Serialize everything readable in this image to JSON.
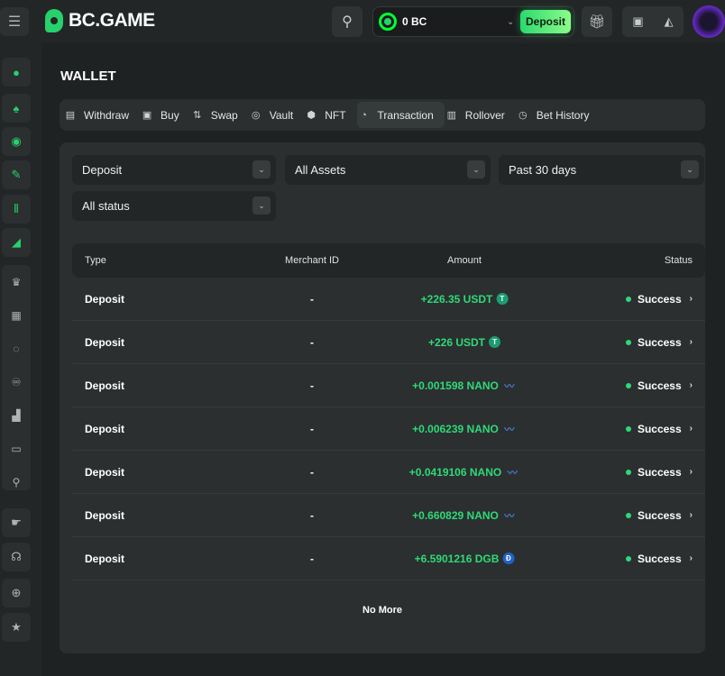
{
  "header": {
    "logo": "BC.GAME",
    "balance": "0 BC",
    "deposit_label": "Deposit",
    "accent": "#27d16b"
  },
  "sidebar": {
    "top_items": [
      "bc-logo-icon",
      "casino-icon",
      "sports-icon",
      "lottery-icon",
      "trading-icon",
      "cards-icon"
    ],
    "group_items": [
      "vip-crown-icon",
      "gift-icon",
      "spin-icon",
      "affiliate-icon",
      "forum-icon",
      "chat-icon",
      "search-user-icon"
    ],
    "bottom_items": [
      "sponsorship-icon",
      "support-icon",
      "language-icon",
      "favorite-icon"
    ]
  },
  "page": {
    "title": "WALLET"
  },
  "tabs": [
    {
      "label": "Withdraw",
      "icon": "withdraw-icon"
    },
    {
      "label": "Buy",
      "icon": "buy-icon"
    },
    {
      "label": "Swap",
      "icon": "swap-icon"
    },
    {
      "label": "Vault",
      "icon": "vault-icon"
    },
    {
      "label": "NFT",
      "icon": "nft-icon"
    },
    {
      "label": "Transaction",
      "icon": "transaction-icon",
      "active": true
    },
    {
      "label": "Rollover",
      "icon": "rollover-icon"
    },
    {
      "label": "Bet History",
      "icon": "clock-icon"
    }
  ],
  "filters": {
    "type": "Deposit",
    "asset": "All Assets",
    "period": "Past 30 days",
    "status": "All status"
  },
  "table": {
    "columns": [
      "Type",
      "Merchant ID",
      "Amount",
      "Status"
    ],
    "rows": [
      {
        "type": "Deposit",
        "merchant": "-",
        "amount": "+226.35 USDT",
        "coin": "usdt",
        "status": "Success"
      },
      {
        "type": "Deposit",
        "merchant": "-",
        "amount": "+226 USDT",
        "coin": "usdt",
        "status": "Success"
      },
      {
        "type": "Deposit",
        "merchant": "-",
        "amount": "+0.001598 NANO",
        "coin": "nano",
        "status": "Success"
      },
      {
        "type": "Deposit",
        "merchant": "-",
        "amount": "+0.006239 NANO",
        "coin": "nano",
        "status": "Success"
      },
      {
        "type": "Deposit",
        "merchant": "-",
        "amount": "+0.0419106 NANO",
        "coin": "nano",
        "status": "Success"
      },
      {
        "type": "Deposit",
        "merchant": "-",
        "amount": "+0.660829 NANO",
        "coin": "nano",
        "status": "Success"
      },
      {
        "type": "Deposit",
        "merchant": "-",
        "amount": "+6.5901216 DGB",
        "coin": "dgb",
        "status": "Success"
      }
    ],
    "footer": "No More"
  }
}
